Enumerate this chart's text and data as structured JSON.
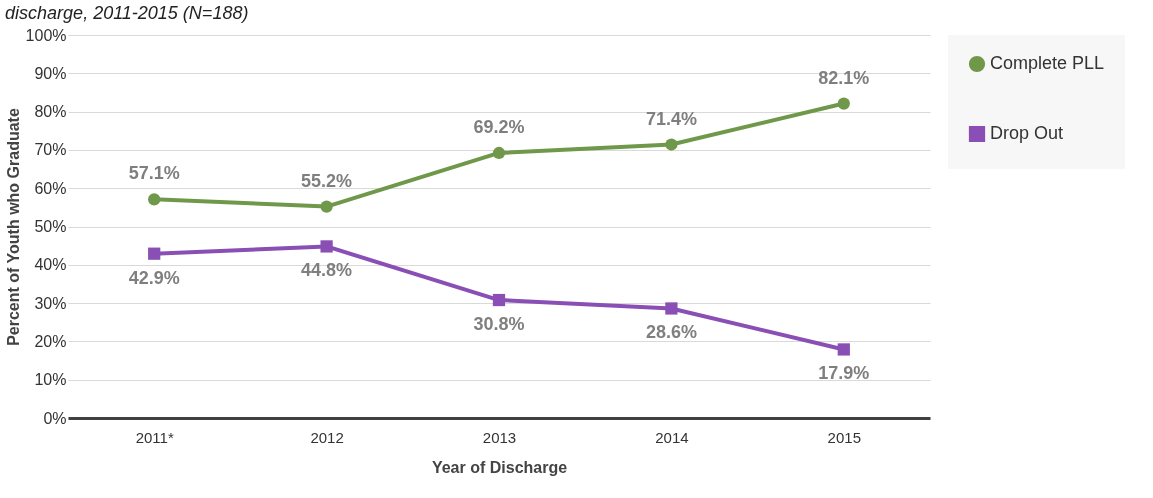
{
  "chart_data": {
    "type": "line",
    "title": "discharge, 2011-2015 (N=188)",
    "xlabel": "Year of Discharge",
    "ylabel": "Percent of Youth who Graduate",
    "categories": [
      "2011*",
      "2012",
      "2013",
      "2014",
      "2015"
    ],
    "series": [
      {
        "name": "Complete PLL",
        "color": "#70984a",
        "marker": "circle",
        "values": [
          57.1,
          55.2,
          69.2,
          71.4,
          82.1
        ],
        "value_labels": [
          "57.1%",
          "55.2%",
          "69.2%",
          "71.4%",
          "82.1%"
        ]
      },
      {
        "name": "Drop Out",
        "color": "#8a4fb5",
        "marker": "square",
        "values": [
          42.9,
          44.8,
          30.8,
          28.6,
          17.9
        ],
        "value_labels": [
          "42.9%",
          "44.8%",
          "30.8%",
          "28.6%",
          "17.9%"
        ]
      }
    ],
    "ylim": [
      0,
      100
    ],
    "yticks": [
      {
        "value": 0,
        "label": "0%"
      },
      {
        "value": 10,
        "label": "10%"
      },
      {
        "value": 20,
        "label": "20%"
      },
      {
        "value": 30,
        "label": "30%"
      },
      {
        "value": 40,
        "label": "40%"
      },
      {
        "value": 50,
        "label": "50%"
      },
      {
        "value": 60,
        "label": "60%"
      },
      {
        "value": 70,
        "label": "70%"
      },
      {
        "value": 80,
        "label": "80%"
      },
      {
        "value": 90,
        "label": "90%"
      },
      {
        "value": 100,
        "label": "100%"
      }
    ],
    "grid": "y",
    "legend": "right",
    "line_style": "solid"
  }
}
